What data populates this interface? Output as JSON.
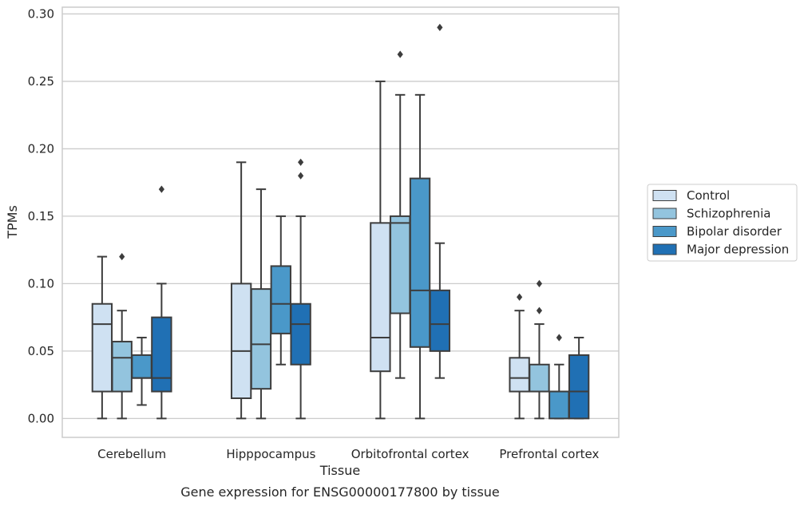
{
  "chart_data": {
    "type": "box",
    "caption": "Gene expression for ENSG00000177800 by tissue",
    "xlabel": "Tissue",
    "ylabel": "TPMs",
    "ylim": [
      -0.014,
      0.305
    ],
    "yticks": [
      "0.00",
      "0.05",
      "0.10",
      "0.15",
      "0.20",
      "0.25",
      "0.30"
    ],
    "ytick_values": [
      0,
      0.05,
      0.1,
      0.15,
      0.2,
      0.25,
      0.3
    ],
    "grid": true,
    "legend_position": "right",
    "categories": [
      "Cerebellum",
      "Hipppocampus",
      "Orbitofrontal cortex",
      "Prefrontal cortex"
    ],
    "colors": {
      "grid": "#cccccc",
      "frame": "#cccccc",
      "line": "#3d3d3d"
    },
    "series": [
      {
        "name": "Control",
        "color": "#cfe1f2",
        "boxes": [
          {
            "whislo": 0.0,
            "q1": 0.02,
            "med": 0.07,
            "q3": 0.085,
            "whishi": 0.12,
            "fliers": []
          },
          {
            "whislo": 0.0,
            "q1": 0.015,
            "med": 0.05,
            "q3": 0.1,
            "whishi": 0.19,
            "fliers": []
          },
          {
            "whislo": 0.0,
            "q1": 0.035,
            "med": 0.06,
            "q3": 0.145,
            "whishi": 0.25,
            "fliers": []
          },
          {
            "whislo": 0.0,
            "q1": 0.02,
            "med": 0.03,
            "q3": 0.045,
            "whishi": 0.08,
            "fliers": [
              0.09
            ]
          }
        ]
      },
      {
        "name": "Schizophrenia",
        "color": "#93c4de",
        "boxes": [
          {
            "whislo": 0.0,
            "q1": 0.02,
            "med": 0.045,
            "q3": 0.057,
            "whishi": 0.08,
            "fliers": [
              0.12
            ]
          },
          {
            "whislo": 0.0,
            "q1": 0.022,
            "med": 0.055,
            "q3": 0.096,
            "whishi": 0.17,
            "fliers": []
          },
          {
            "whislo": 0.03,
            "q1": 0.078,
            "med": 0.145,
            "q3": 0.15,
            "whishi": 0.24,
            "fliers": [
              0.27
            ]
          },
          {
            "whislo": 0.0,
            "q1": 0.02,
            "med": 0.02,
            "q3": 0.04,
            "whishi": 0.07,
            "fliers": [
              0.08,
              0.1
            ]
          }
        ]
      },
      {
        "name": "Bipolar disorder",
        "color": "#4a98c9",
        "boxes": [
          {
            "whislo": 0.01,
            "q1": 0.03,
            "med": 0.03,
            "q3": 0.047,
            "whishi": 0.06,
            "fliers": []
          },
          {
            "whislo": 0.04,
            "q1": 0.063,
            "med": 0.085,
            "q3": 0.113,
            "whishi": 0.15,
            "fliers": []
          },
          {
            "whislo": 0.0,
            "q1": 0.053,
            "med": 0.095,
            "q3": 0.178,
            "whishi": 0.24,
            "fliers": []
          },
          {
            "whislo": 0.0,
            "q1": 0.0,
            "med": 0.02,
            "q3": 0.02,
            "whishi": 0.04,
            "fliers": [
              0.06
            ]
          }
        ]
      },
      {
        "name": "Major depression",
        "color": "#2070b4",
        "boxes": [
          {
            "whislo": 0.0,
            "q1": 0.02,
            "med": 0.03,
            "q3": 0.075,
            "whishi": 0.1,
            "fliers": [
              0.17
            ]
          },
          {
            "whislo": 0.0,
            "q1": 0.04,
            "med": 0.07,
            "q3": 0.085,
            "whishi": 0.15,
            "fliers": [
              0.18,
              0.19
            ]
          },
          {
            "whislo": 0.03,
            "q1": 0.05,
            "med": 0.07,
            "q3": 0.095,
            "whishi": 0.13,
            "fliers": [
              0.29
            ]
          },
          {
            "whislo": 0.0,
            "q1": 0.0,
            "med": 0.02,
            "q3": 0.047,
            "whishi": 0.06,
            "fliers": []
          }
        ]
      }
    ]
  }
}
